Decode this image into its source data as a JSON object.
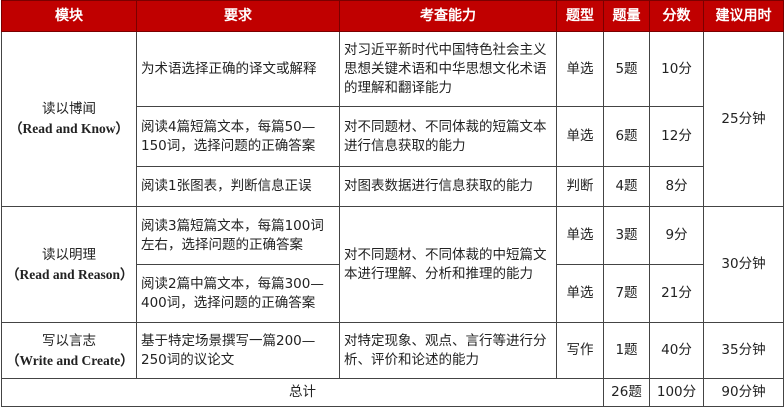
{
  "headers": [
    "模块",
    "要求",
    "考查能力",
    "题型",
    "题量",
    "分数",
    "建议用时"
  ],
  "modules": [
    {
      "name": "读以博闻",
      "en": "（Read and Know）",
      "time": "25分钟"
    },
    {
      "name": "读以明理",
      "en": "（Read and Reason）",
      "time": "30分钟"
    },
    {
      "name": "写以言志",
      "en": "（Write and Create）",
      "time": "35分钟"
    }
  ],
  "rows": [
    {
      "req": "为术语选择正确的译文或解释",
      "ability": "对习近平新时代中国特色社会主义思想关键术语和中华思想文化术语的理解和翻译能力",
      "type": "单选",
      "count": "5题",
      "score": "10分"
    },
    {
      "req": "阅读4篇短篇文本，每篇50—150词，选择问题的正确答案",
      "ability": "对不同题材、不同体裁的短篇文本进行信息获取的能力",
      "type": "单选",
      "count": "6题",
      "score": "12分"
    },
    {
      "req": "阅读1张图表，判断信息正误",
      "ability": "对图表数据进行信息获取的能力",
      "type": "判断",
      "count": "4题",
      "score": "8分"
    },
    {
      "req": "阅读3篇短篇文本，每篇100词左右，选择问题的正确答案",
      "ability": "对不同题材、不同体裁的中短篇文本进行理解、分析和推理的能力",
      "type": "单选",
      "count": "3题",
      "score": "9分"
    },
    {
      "req": "阅读2篇中篇文本，每篇300—400词，选择问题的正确答案",
      "type": "单选",
      "count": "7题",
      "score": "21分"
    },
    {
      "req": "基于特定场景撰写一篇200—250词的议论文",
      "ability": "对特定现象、观点、言行等进行分析、评价和论述的能力",
      "type": "写作",
      "count": "1题",
      "score": "40分"
    }
  ],
  "total": {
    "label": "总计",
    "count": "26题",
    "score": "100分",
    "time": "90分钟"
  },
  "colors": {
    "header_bg": "#c00000",
    "header_text": "#ffffff"
  }
}
